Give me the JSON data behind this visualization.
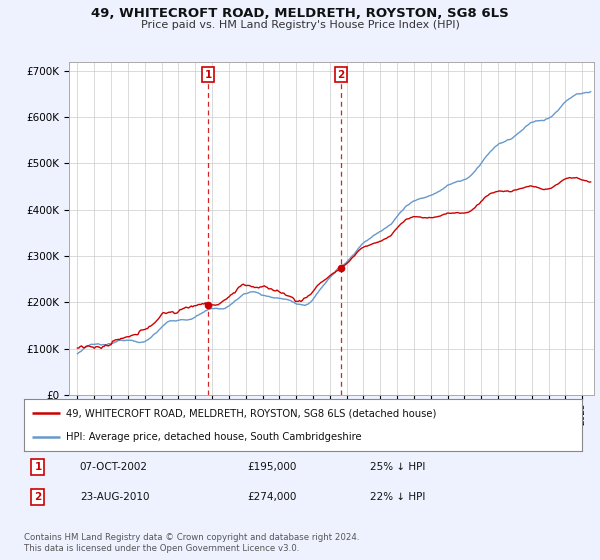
{
  "title": "49, WHITECROFT ROAD, MELDRETH, ROYSTON, SG8 6LS",
  "subtitle": "Price paid vs. HM Land Registry's House Price Index (HPI)",
  "ylim": [
    0,
    720000
  ],
  "yticks": [
    0,
    100000,
    200000,
    300000,
    400000,
    500000,
    600000,
    700000
  ],
  "ytick_labels": [
    "£0",
    "£100K",
    "£200K",
    "£300K",
    "£400K",
    "£500K",
    "£600K",
    "£700K"
  ],
  "hpi_color": "#6699cc",
  "price_color": "#cc0000",
  "marker1_date": "07-OCT-2002",
  "marker1_price": "£195,000",
  "marker1_hpi": "25% ↓ HPI",
  "marker2_date": "23-AUG-2010",
  "marker2_price": "£274,000",
  "marker2_hpi": "22% ↓ HPI",
  "legend_line1": "49, WHITECROFT ROAD, MELDRETH, ROYSTON, SG8 6LS (detached house)",
  "legend_line2": "HPI: Average price, detached house, South Cambridgeshire",
  "footer": "Contains HM Land Registry data © Crown copyright and database right 2024.\nThis data is licensed under the Open Government Licence v3.0.",
  "background_color": "#eef2ff",
  "plot_bg_color": "#ffffff",
  "grid_color": "#cccccc",
  "vline_color": "#cc0000",
  "start_year": 1995,
  "end_year": 2025,
  "year_t1": 2002.77,
  "year_t2": 2010.64,
  "price1": 195000,
  "price2": 274000
}
